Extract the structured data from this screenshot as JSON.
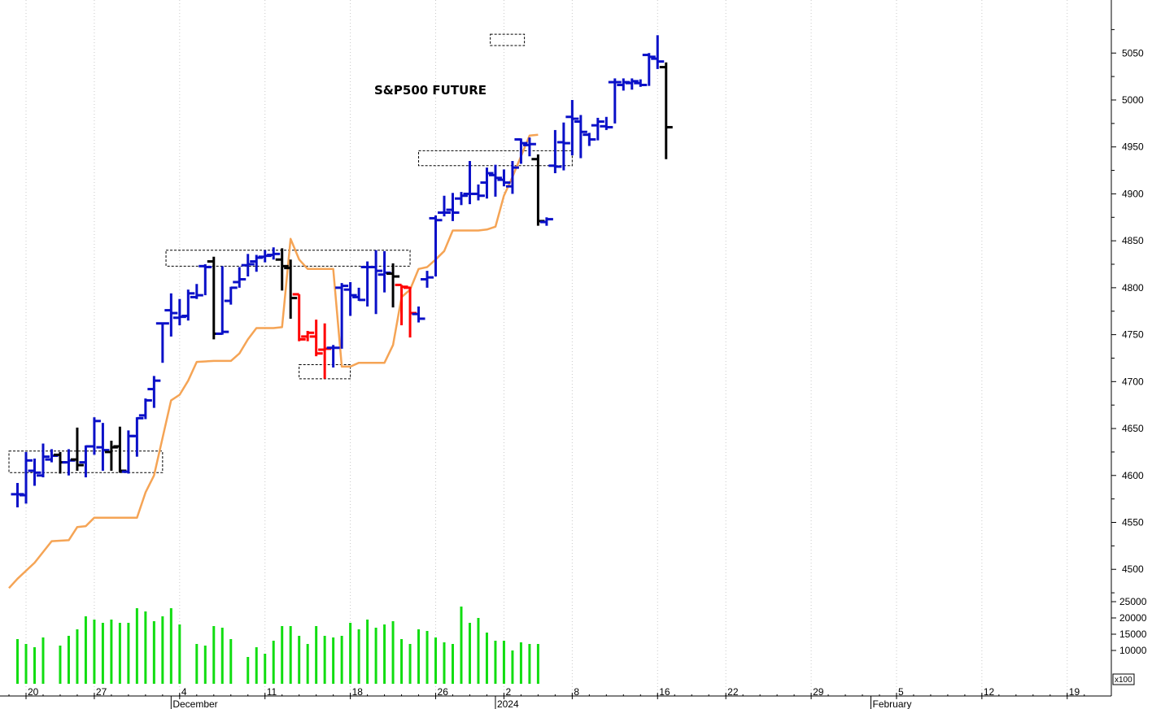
{
  "chart_data": {
    "type": "ohlc",
    "title": "S&P500 FUTURE",
    "price_axis": {
      "ylim": [
        4470,
        5100
      ],
      "ticks": [
        4500,
        4550,
        4600,
        4650,
        4700,
        4750,
        4800,
        4850,
        4900,
        4950,
        5000,
        5050
      ]
    },
    "volume_axis": {
      "ylim": [
        0,
        28000
      ],
      "ticks": [
        10000,
        15000,
        20000,
        25000
      ],
      "unit_label": "x100"
    },
    "x_day_labels": [
      {
        "day": 0,
        "label": "20"
      },
      {
        "day": 4,
        "label": "27"
      },
      {
        "day": 9,
        "label": "4"
      },
      {
        "day": 14,
        "label": "11"
      },
      {
        "day": 19,
        "label": "18"
      },
      {
        "day": 24,
        "label": "26"
      },
      {
        "day": 28,
        "label": "2"
      },
      {
        "day": 32,
        "label": "8"
      },
      {
        "day": 37,
        "label": "16"
      },
      {
        "day": 41,
        "label": "22"
      },
      {
        "day": 46,
        "label": "29"
      },
      {
        "day": 51,
        "label": "5"
      },
      {
        "day": 56,
        "label": "12"
      },
      {
        "day": 61,
        "label": "19"
      }
    ],
    "x_month_labels": [
      {
        "day": 8.5,
        "label": "December"
      },
      {
        "day": 27.5,
        "label": "2024"
      },
      {
        "day": 49.5,
        "label": "February"
      }
    ],
    "colors": {
      "up": "#0a10c8",
      "down": "#ff0000",
      "neutral": "#000000",
      "trailing_stop": "#f5a455",
      "volume": "#11dd11",
      "grid": "#c8c8c8"
    },
    "bars": [
      {
        "d": -0.5,
        "o": 4580,
        "h": 4592,
        "l": 4566,
        "c": 4580,
        "col": "up"
      },
      {
        "d": 0,
        "o": 4579,
        "h": 4625,
        "l": 4570,
        "c": 4616,
        "col": "up"
      },
      {
        "d": 0.5,
        "o": 4605,
        "h": 4618,
        "l": 4589,
        "c": 4603,
        "col": "up"
      },
      {
        "d": 1,
        "o": 4600,
        "h": 4634,
        "l": 4598,
        "c": 4620,
        "col": "up"
      },
      {
        "d": 1.5,
        "o": 4617,
        "h": 4628,
        "l": 4614,
        "c": 4621,
        "col": "up"
      },
      {
        "d": 2,
        "o": 4622,
        "h": 4625,
        "l": 4602,
        "c": 4614,
        "col": "neutral"
      },
      {
        "d": 2.5,
        "o": 4614,
        "h": 4628,
        "l": 4600,
        "c": 4616,
        "col": "up"
      },
      {
        "d": 3,
        "o": 4617,
        "h": 4651,
        "l": 4605,
        "c": 4611,
        "col": "neutral"
      },
      {
        "d": 3.5,
        "o": 4614,
        "h": 4632,
        "l": 4598,
        "c": 4631,
        "col": "up"
      },
      {
        "d": 4,
        "o": 4631,
        "h": 4662,
        "l": 4622,
        "c": 4658,
        "col": "up"
      },
      {
        "d": 4.5,
        "o": 4630,
        "h": 4656,
        "l": 4605,
        "c": 4627,
        "col": "up"
      },
      {
        "d": 5,
        "o": 4625,
        "h": 4637,
        "l": 4605,
        "c": 4630,
        "col": "neutral"
      },
      {
        "d": 5.5,
        "o": 4631,
        "h": 4652,
        "l": 4603,
        "c": 4605,
        "col": "neutral"
      },
      {
        "d": 6,
        "o": 4604,
        "h": 4648,
        "l": 4602,
        "c": 4642,
        "col": "up"
      },
      {
        "d": 6.5,
        "o": 4642,
        "h": 4662,
        "l": 4620,
        "c": 4661,
        "col": "up"
      },
      {
        "d": 7,
        "o": 4664,
        "h": 4682,
        "l": 4660,
        "c": 4680,
        "col": "up"
      },
      {
        "d": 7.5,
        "o": 4692,
        "h": 4706,
        "l": 4672,
        "c": 4701,
        "col": "up"
      },
      {
        "d": 8,
        "o": 4762,
        "h": 4763,
        "l": 4720,
        "c": 4762,
        "col": "up"
      },
      {
        "d": 8.5,
        "o": 4776,
        "h": 4794,
        "l": 4748,
        "c": 4773,
        "col": "up"
      },
      {
        "d": 9,
        "o": 4768,
        "h": 4788,
        "l": 4760,
        "c": 4769,
        "col": "up"
      },
      {
        "d": 9.5,
        "o": 4770,
        "h": 4798,
        "l": 4765,
        "c": 4794,
        "col": "up"
      },
      {
        "d": 10,
        "o": 4790,
        "h": 4804,
        "l": 4788,
        "c": 4792,
        "col": "up"
      },
      {
        "d": 10.5,
        "o": 4823,
        "h": 4825,
        "l": 4792,
        "c": 4822,
        "col": "up"
      },
      {
        "d": 11,
        "o": 4828,
        "h": 4833,
        "l": 4745,
        "c": 4751,
        "col": "neutral"
      },
      {
        "d": 11.5,
        "o": 4751,
        "h": 4823,
        "l": 4750,
        "c": 4753,
        "col": "up"
      },
      {
        "d": 12,
        "o": 4786,
        "h": 4801,
        "l": 4782,
        "c": 4800,
        "col": "up"
      },
      {
        "d": 12.5,
        "o": 4806,
        "h": 4822,
        "l": 4800,
        "c": 4809,
        "col": "up"
      },
      {
        "d": 13,
        "o": 4824,
        "h": 4836,
        "l": 4812,
        "c": 4825,
        "col": "up"
      },
      {
        "d": 13.5,
        "o": 4828,
        "h": 4835,
        "l": 4817,
        "c": 4832,
        "col": "up"
      },
      {
        "d": 14,
        "o": 4833,
        "h": 4840,
        "l": 4827,
        "c": 4834,
        "col": "up"
      },
      {
        "d": 14.5,
        "o": 4835,
        "h": 4843,
        "l": 4830,
        "c": 4836,
        "col": "up"
      },
      {
        "d": 15,
        "o": 4830,
        "h": 4842,
        "l": 4797,
        "c": 4823,
        "col": "neutral"
      },
      {
        "d": 15.5,
        "o": 4821,
        "h": 4830,
        "l": 4767,
        "c": 4789,
        "col": "neutral"
      },
      {
        "d": 16,
        "o": 4793,
        "h": 4793,
        "l": 4743,
        "c": 4745,
        "col": "down"
      },
      {
        "d": 16.5,
        "o": 4748,
        "h": 4754,
        "l": 4743,
        "c": 4752,
        "col": "down"
      },
      {
        "d": 17,
        "o": 4748,
        "h": 4766,
        "l": 4727,
        "c": 4730,
        "col": "down"
      },
      {
        "d": 17.5,
        "o": 4734,
        "h": 4762,
        "l": 4703,
        "c": 4735,
        "col": "down"
      },
      {
        "d": 18,
        "o": 4736,
        "h": 4739,
        "l": 4715,
        "c": 4736,
        "col": "up"
      },
      {
        "d": 18.5,
        "o": 4800,
        "h": 4805,
        "l": 4735,
        "c": 4802,
        "col": "up"
      },
      {
        "d": 19,
        "o": 4798,
        "h": 4806,
        "l": 4770,
        "c": 4792,
        "col": "up"
      },
      {
        "d": 19.5,
        "o": 4790,
        "h": 4800,
        "l": 4786,
        "c": 4787,
        "col": "up"
      },
      {
        "d": 20,
        "o": 4822,
        "h": 4828,
        "l": 4780,
        "c": 4822,
        "col": "up"
      },
      {
        "d": 20.5,
        "o": 4822,
        "h": 4840,
        "l": 4772,
        "c": 4818,
        "col": "up"
      },
      {
        "d": 21,
        "o": 4814,
        "h": 4839,
        "l": 4795,
        "c": 4816,
        "col": "up"
      },
      {
        "d": 21.5,
        "o": 4815,
        "h": 4826,
        "l": 4779,
        "c": 4812,
        "col": "neutral"
      },
      {
        "d": 22,
        "o": 4803,
        "h": 4803,
        "l": 4760,
        "c": 4801,
        "col": "down"
      },
      {
        "d": 22.5,
        "o": 4800,
        "h": 4801,
        "l": 4747,
        "c": 4773,
        "col": "down"
      },
      {
        "d": 23,
        "o": 4772,
        "h": 4780,
        "l": 4763,
        "c": 4767,
        "col": "up"
      },
      {
        "d": 23.5,
        "o": 4809,
        "h": 4818,
        "l": 4800,
        "c": 4811,
        "col": "up"
      },
      {
        "d": 24,
        "o": 4874,
        "h": 4877,
        "l": 4812,
        "c": 4872,
        "col": "up"
      },
      {
        "d": 24.5,
        "o": 4880,
        "h": 4898,
        "l": 4876,
        "c": 4880,
        "col": "up"
      },
      {
        "d": 25,
        "o": 4883,
        "h": 4901,
        "l": 4871,
        "c": 4880,
        "col": "up"
      },
      {
        "d": 25.5,
        "o": 4895,
        "h": 4902,
        "l": 4888,
        "c": 4898,
        "col": "up"
      },
      {
        "d": 26,
        "o": 4900,
        "h": 4935,
        "l": 4889,
        "c": 4900,
        "col": "up"
      },
      {
        "d": 26.5,
        "o": 4900,
        "h": 4910,
        "l": 4893,
        "c": 4898,
        "col": "up"
      },
      {
        "d": 27,
        "o": 4912,
        "h": 4928,
        "l": 4895,
        "c": 4922,
        "col": "up"
      },
      {
        "d": 27.5,
        "o": 4920,
        "h": 4931,
        "l": 4897,
        "c": 4917,
        "col": "up"
      },
      {
        "d": 28,
        "o": 4915,
        "h": 4926,
        "l": 4908,
        "c": 4912,
        "col": "up"
      },
      {
        "d": 28.5,
        "o": 4908,
        "h": 4935,
        "l": 4900,
        "c": 4928,
        "col": "up"
      },
      {
        "d": 29,
        "o": 4958,
        "h": 4959,
        "l": 4932,
        "c": 4954,
        "col": "up"
      },
      {
        "d": 29.5,
        "o": 4952,
        "h": 4960,
        "l": 4940,
        "c": 4953,
        "col": "up"
      },
      {
        "d": 30,
        "o": 4937,
        "h": 4942,
        "l": 4866,
        "c": 4871,
        "col": "neutral"
      },
      {
        "d": 30.5,
        "o": 4870,
        "h": 4875,
        "l": 4866,
        "c": 4873,
        "col": "up"
      },
      {
        "d": 31,
        "o": 4930,
        "h": 4968,
        "l": 4922,
        "c": 4929,
        "col": "up"
      },
      {
        "d": 31.5,
        "o": 4955,
        "h": 4976,
        "l": 4925,
        "c": 4954,
        "col": "up"
      },
      {
        "d": 32,
        "o": 4982,
        "h": 5000,
        "l": 4941,
        "c": 4980,
        "col": "up"
      },
      {
        "d": 32.5,
        "o": 4977,
        "h": 4984,
        "l": 4938,
        "c": 4966,
        "col": "up"
      },
      {
        "d": 33,
        "o": 4963,
        "h": 4965,
        "l": 4951,
        "c": 4958,
        "col": "up"
      },
      {
        "d": 33.5,
        "o": 4973,
        "h": 4981,
        "l": 4957,
        "c": 4977,
        "col": "up"
      },
      {
        "d": 34,
        "o": 4972,
        "h": 4982,
        "l": 4968,
        "c": 4971,
        "col": "up"
      },
      {
        "d": 34.5,
        "o": 5019,
        "h": 5023,
        "l": 4975,
        "c": 5019,
        "col": "up"
      },
      {
        "d": 35,
        "o": 5016,
        "h": 5023,
        "l": 5010,
        "c": 5019,
        "col": "up"
      },
      {
        "d": 35.5,
        "o": 5018,
        "h": 5023,
        "l": 5011,
        "c": 5020,
        "col": "up"
      },
      {
        "d": 36,
        "o": 5018,
        "h": 5022,
        "l": 5014,
        "c": 5016,
        "col": "up"
      },
      {
        "d": 36.5,
        "o": 5048,
        "h": 5050,
        "l": 5015,
        "c": 5046,
        "col": "up"
      },
      {
        "d": 37,
        "o": 5044,
        "h": 5069,
        "l": 5033,
        "c": 5041,
        "col": "up"
      },
      {
        "d": 37.5,
        "o": 5035,
        "h": 5040,
        "l": 4937,
        "c": 4971,
        "col": "neutral"
      }
    ],
    "trailing_stop": [
      [
        -1,
        4480
      ],
      [
        -0.5,
        4490
      ],
      [
        0.5,
        4507
      ],
      [
        1.5,
        4530
      ],
      [
        2.5,
        4531
      ],
      [
        3,
        4545
      ],
      [
        3.5,
        4546
      ],
      [
        4,
        4555
      ],
      [
        5,
        4555
      ],
      [
        6.5,
        4555
      ],
      [
        7,
        4582
      ],
      [
        7.5,
        4600
      ],
      [
        8,
        4640
      ],
      [
        8.5,
        4680
      ],
      [
        9,
        4686
      ],
      [
        9.5,
        4701
      ],
      [
        10,
        4721
      ],
      [
        11,
        4722
      ],
      [
        12,
        4722
      ],
      [
        12.5,
        4730
      ],
      [
        13,
        4745
      ],
      [
        13.5,
        4757
      ],
      [
        14.5,
        4757
      ],
      [
        15,
        4758
      ],
      [
        15.5,
        4852
      ],
      [
        16,
        4830
      ],
      [
        16.5,
        4820
      ],
      [
        17.5,
        4820
      ],
      [
        18,
        4820
      ],
      [
        18.5,
        4716
      ],
      [
        19,
        4716
      ],
      [
        19.5,
        4720
      ],
      [
        21,
        4720
      ],
      [
        21.5,
        4739
      ],
      [
        22,
        4790
      ],
      [
        22.5,
        4798
      ],
      [
        23,
        4820
      ],
      [
        23.5,
        4822
      ],
      [
        24,
        4830
      ],
      [
        24.5,
        4839
      ],
      [
        25,
        4861
      ],
      [
        26.5,
        4861
      ],
      [
        27,
        4862
      ],
      [
        27.5,
        4865
      ],
      [
        28,
        4898
      ],
      [
        28.5,
        4918
      ],
      [
        29,
        4940
      ],
      [
        29.5,
        4962
      ],
      [
        30,
        4963
      ]
    ],
    "volume": [
      [
        -0.5,
        13500
      ],
      [
        0,
        12000
      ],
      [
        0.5,
        11000
      ],
      [
        1,
        14000
      ],
      [
        2,
        11500
      ],
      [
        2.5,
        14500
      ],
      [
        3,
        16500
      ],
      [
        3.5,
        20500
      ],
      [
        4,
        19500
      ],
      [
        4.5,
        18500
      ],
      [
        5,
        19500
      ],
      [
        5.5,
        18500
      ],
      [
        6,
        18500
      ],
      [
        6.5,
        23000
      ],
      [
        7,
        22000
      ],
      [
        7.5,
        19000
      ],
      [
        8,
        20500
      ],
      [
        8.5,
        23000
      ],
      [
        9,
        18000
      ],
      [
        10,
        12000
      ],
      [
        10.5,
        11500
      ],
      [
        11,
        17500
      ],
      [
        11.5,
        17000
      ],
      [
        12,
        13500
      ],
      [
        13,
        8000
      ],
      [
        13.5,
        11000
      ],
      [
        14,
        9000
      ],
      [
        14.5,
        13000
      ],
      [
        15,
        17500
      ],
      [
        15.5,
        17500
      ],
      [
        16,
        14500
      ],
      [
        16.5,
        12000
      ],
      [
        17,
        17500
      ],
      [
        17.5,
        14500
      ],
      [
        18,
        14000
      ],
      [
        18.5,
        14500
      ],
      [
        19,
        18500
      ],
      [
        19.5,
        16500
      ],
      [
        20,
        19500
      ],
      [
        20.5,
        17000
      ],
      [
        21,
        18000
      ],
      [
        21.5,
        19000
      ],
      [
        22,
        13500
      ],
      [
        22.5,
        12000
      ],
      [
        23,
        16500
      ],
      [
        23.5,
        16000
      ],
      [
        24,
        14000
      ],
      [
        24.5,
        12500
      ],
      [
        25,
        12000
      ],
      [
        25.5,
        23500
      ],
      [
        26,
        18500
      ],
      [
        26.5,
        20000
      ],
      [
        27,
        15500
      ],
      [
        27.5,
        13000
      ],
      [
        28,
        13000
      ],
      [
        28.5,
        10000
      ],
      [
        29,
        12500
      ],
      [
        29.5,
        12000
      ],
      [
        30,
        12000
      ]
    ],
    "support_resistance_boxes": [
      {
        "d1": -1,
        "d2": 8,
        "y1": 4603,
        "y2": 4626
      },
      {
        "d1": 8.2,
        "d2": 22.5,
        "y1": 4823,
        "y2": 4840
      },
      {
        "d1": 16,
        "d2": 19,
        "y1": 4703,
        "y2": 4718
      },
      {
        "d1": 23,
        "d2": 32,
        "y1": 4930,
        "y2": 4946
      },
      {
        "d1": 27.2,
        "d2": 29.2,
        "y1": 5058,
        "y2": 5070
      }
    ]
  }
}
